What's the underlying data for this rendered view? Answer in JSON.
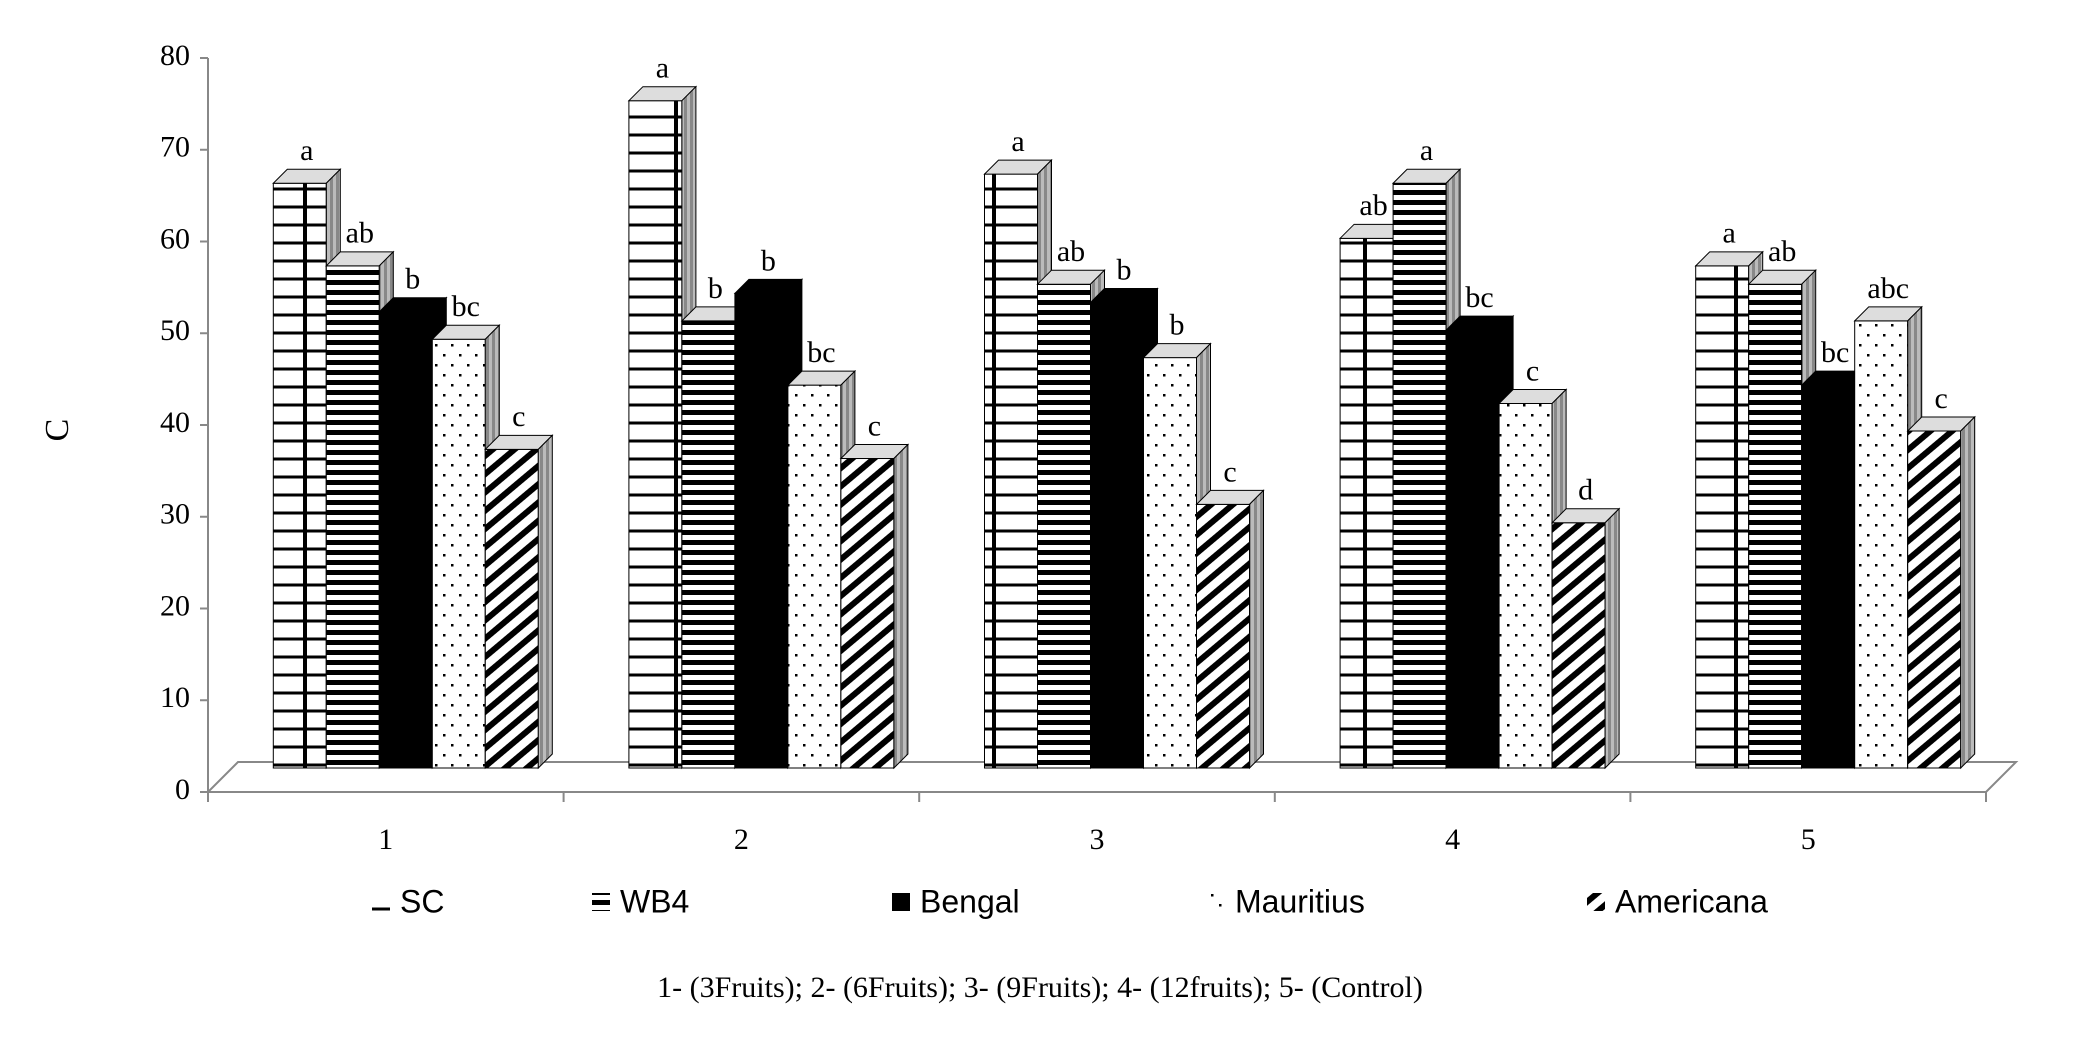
{
  "chart_data": {
    "type": "bar3d",
    "y_label": "C",
    "categories": [
      "1",
      "2",
      "3",
      "4",
      "5"
    ],
    "series": [
      {
        "name": "SC",
        "values": [
          67,
          76,
          68,
          61,
          58
        ],
        "letters": [
          "a",
          "a",
          "a",
          "ab",
          "a"
        ]
      },
      {
        "name": "WB4",
        "values": [
          58,
          52,
          56,
          67,
          56
        ],
        "letters": [
          "ab",
          "b",
          "ab",
          "a",
          "ab"
        ]
      },
      {
        "name": "Bengal",
        "values": [
          53,
          55,
          54,
          51,
          45
        ],
        "letters": [
          "b",
          "b",
          "b",
          "bc",
          "bc"
        ]
      },
      {
        "name": "Mauritius",
        "values": [
          50,
          45,
          48,
          43,
          52
        ],
        "letters": [
          "bc",
          "bc",
          "b",
          "c",
          "abc"
        ]
      },
      {
        "name": "Americana",
        "values": [
          38,
          37,
          32,
          30,
          40
        ],
        "letters": [
          "c",
          "c",
          "c",
          "d",
          "c"
        ]
      }
    ],
    "ylim": [
      0,
      80
    ],
    "yticks": [
      0,
      10,
      20,
      30,
      40,
      50,
      60,
      70,
      80
    ],
    "footnote": "1- (3Fruits); 2- (6Fruits); 3- (9Fruits); 4- (12fruits); 5- (Control)"
  }
}
